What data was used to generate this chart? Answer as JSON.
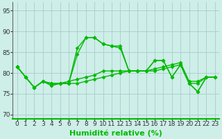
{
  "xlabel": "Humidité relative (%)",
  "xlim": [
    -0.5,
    23.5
  ],
  "ylim": [
    69,
    97
  ],
  "yticks": [
    70,
    75,
    80,
    85,
    90,
    95
  ],
  "xticks": [
    0,
    1,
    2,
    3,
    4,
    5,
    6,
    7,
    8,
    9,
    10,
    11,
    12,
    13,
    14,
    15,
    16,
    17,
    18,
    19,
    20,
    21,
    22,
    23
  ],
  "bg_color": "#ceeee8",
  "grid_color": "#aacccc",
  "line_color": "#00bb00",
  "lines": [
    [
      81.5,
      79.0,
      76.5,
      78.0,
      77.0,
      77.5,
      77.5,
      86.0,
      88.5,
      88.5,
      87.0,
      86.5,
      86.5,
      80.5,
      80.5,
      80.5,
      83.0,
      83.0,
      79.0,
      82.0,
      77.5,
      75.5,
      79.0,
      79.0
    ],
    [
      81.5,
      79.0,
      76.5,
      78.0,
      77.0,
      77.5,
      77.5,
      84.5,
      88.5,
      88.5,
      87.0,
      86.5,
      86.0,
      80.5,
      80.5,
      80.5,
      83.0,
      83.0,
      79.0,
      82.0,
      77.5,
      75.5,
      79.0,
      79.0
    ],
    [
      81.5,
      79.0,
      76.5,
      78.0,
      77.5,
      77.5,
      78.0,
      78.5,
      79.0,
      79.5,
      80.5,
      80.5,
      80.5,
      80.5,
      80.5,
      80.5,
      81.0,
      81.5,
      82.0,
      82.5,
      78.0,
      78.0,
      79.0,
      79.0
    ],
    [
      81.5,
      79.0,
      76.5,
      78.0,
      77.5,
      77.5,
      77.5,
      77.5,
      78.0,
      78.5,
      79.0,
      79.5,
      80.0,
      80.5,
      80.5,
      80.5,
      80.5,
      81.0,
      81.5,
      82.0,
      77.5,
      77.5,
      79.0,
      79.0
    ]
  ],
  "marker": "D",
  "markersize": 2.5,
  "linewidth": 1.0,
  "xlabel_fontsize": 8,
  "tick_fontsize": 6.5
}
